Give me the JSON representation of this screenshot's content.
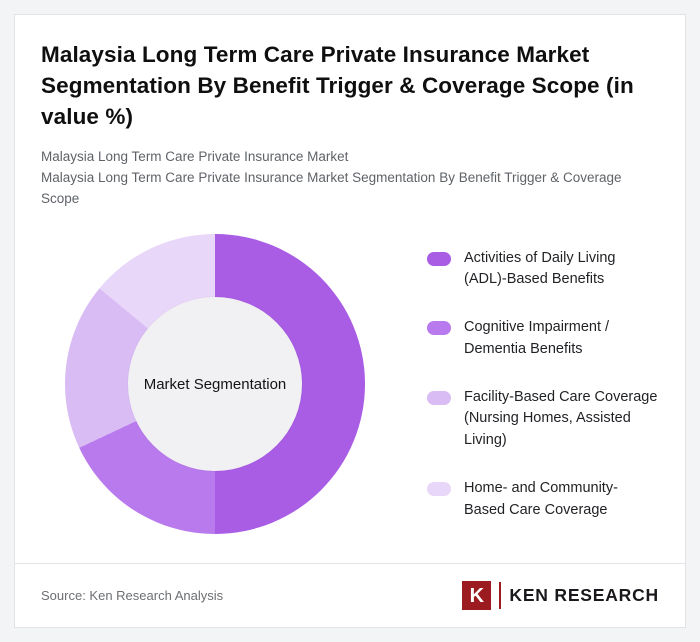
{
  "page": {
    "title": "Malaysia Long Term Care Private Insurance Market Segmentation By Benefit Trigger & Coverage Scope (in value %)",
    "subtitle1": "Malaysia Long Term Care Private Insurance Market",
    "subtitle2": "Malaysia Long Term Care Private Insurance Market Segmentation By Benefit Trigger & Coverage Scope"
  },
  "chart_data": {
    "type": "pie",
    "donut": true,
    "title": "Malaysia Long Term Care Private Insurance Market Segmentation By Benefit Trigger & Coverage Scope (in value %)",
    "center_label": "Market Segmentation",
    "categories": [
      "Activities of Daily Living (ADL)-Based Benefits",
      "Cognitive Impairment / Dementia Benefits",
      "Facility-Based Care Coverage (Nursing Homes, Assisted Living)",
      "Home- and Community-Based Care Coverage"
    ],
    "values": [
      50,
      18,
      18,
      14
    ],
    "colors": [
      "#a95ce4",
      "#b87aec",
      "#d9bcf4",
      "#e9d7f9"
    ],
    "units": "value %",
    "legend_position": "right",
    "start_angle_deg": 0,
    "direction": "clockwise",
    "hole_color": "#f1f1f3"
  },
  "footer": {
    "source": "Source: Ken Research Analysis",
    "logo_letter": "K",
    "logo_text": "Ken Research",
    "logo_color": "#9c1b20"
  }
}
